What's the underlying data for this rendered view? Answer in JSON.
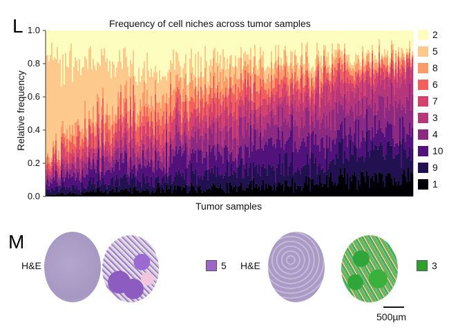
{
  "panel_L": {
    "letter": "L"
  },
  "panel_M": {
    "letter": "M",
    "he_label_1": "H&E",
    "he_label_2": "H&E",
    "niche_1_label": "5",
    "niche_1_color": "#9b67c9",
    "niche_2_label": "3",
    "niche_2_color": "#2ea02e",
    "scale_bar_label": "500µm"
  },
  "chart_data": {
    "type": "bar",
    "stacked": true,
    "title": "Frequency of cell niches across tumor samples",
    "xlabel": "Tumor samples",
    "ylabel": "Relative frequency",
    "ylim": [
      0,
      1
    ],
    "yticks": [
      "0.0",
      "0.2",
      "0.4",
      "0.6",
      "0.8",
      "1.0"
    ],
    "legend": [
      "2",
      "5",
      "8",
      "6",
      "7",
      "3",
      "4",
      "10",
      "9",
      "1"
    ],
    "legend_position": "right",
    "stack_order_bottom_up": [
      "1",
      "9",
      "10",
      "4",
      "3",
      "7",
      "6",
      "8",
      "5",
      "2"
    ],
    "colors": {
      "1": "#000004",
      "9": "#221150",
      "10": "#51127c",
      "4": "#8c2981",
      "3": "#b5367a",
      "7": "#d3436e",
      "6": "#f1605d",
      "8": "#fd9a6a",
      "5": "#fec98d",
      "2": "#fcfdbf"
    },
    "note_bins": "samples sorted; mean composition per sample bin (left to right)",
    "bins": [
      {
        "1": 0.01,
        "9": 0.03,
        "10": 0.05,
        "4": 0.04,
        "3": 0.03,
        "7": 0.04,
        "6": 0.04,
        "8": 0.04,
        "5": 0.55,
        "2": 0.17
      },
      {
        "1": 0.03,
        "9": 0.05,
        "10": 0.08,
        "4": 0.06,
        "3": 0.05,
        "7": 0.07,
        "6": 0.07,
        "8": 0.08,
        "5": 0.3,
        "2": 0.21
      },
      {
        "1": 0.04,
        "9": 0.06,
        "10": 0.1,
        "4": 0.07,
        "3": 0.06,
        "7": 0.08,
        "6": 0.09,
        "8": 0.1,
        "5": 0.16,
        "2": 0.24
      },
      {
        "1": 0.05,
        "9": 0.08,
        "10": 0.12,
        "4": 0.09,
        "3": 0.07,
        "7": 0.09,
        "6": 0.09,
        "8": 0.09,
        "5": 0.11,
        "2": 0.21
      },
      {
        "1": 0.06,
        "9": 0.1,
        "10": 0.14,
        "4": 0.11,
        "3": 0.09,
        "7": 0.08,
        "6": 0.08,
        "8": 0.08,
        "5": 0.08,
        "2": 0.18
      },
      {
        "1": 0.08,
        "9": 0.12,
        "10": 0.14,
        "4": 0.13,
        "3": 0.11,
        "7": 0.08,
        "6": 0.06,
        "8": 0.06,
        "5": 0.06,
        "2": 0.16
      },
      {
        "1": 0.1,
        "9": 0.15,
        "10": 0.12,
        "4": 0.15,
        "3": 0.13,
        "7": 0.07,
        "6": 0.05,
        "8": 0.04,
        "5": 0.04,
        "2": 0.15
      },
      {
        "1": 0.13,
        "9": 0.19,
        "10": 0.11,
        "4": 0.17,
        "3": 0.14,
        "7": 0.05,
        "6": 0.03,
        "8": 0.03,
        "5": 0.03,
        "2": 0.12
      }
    ]
  }
}
